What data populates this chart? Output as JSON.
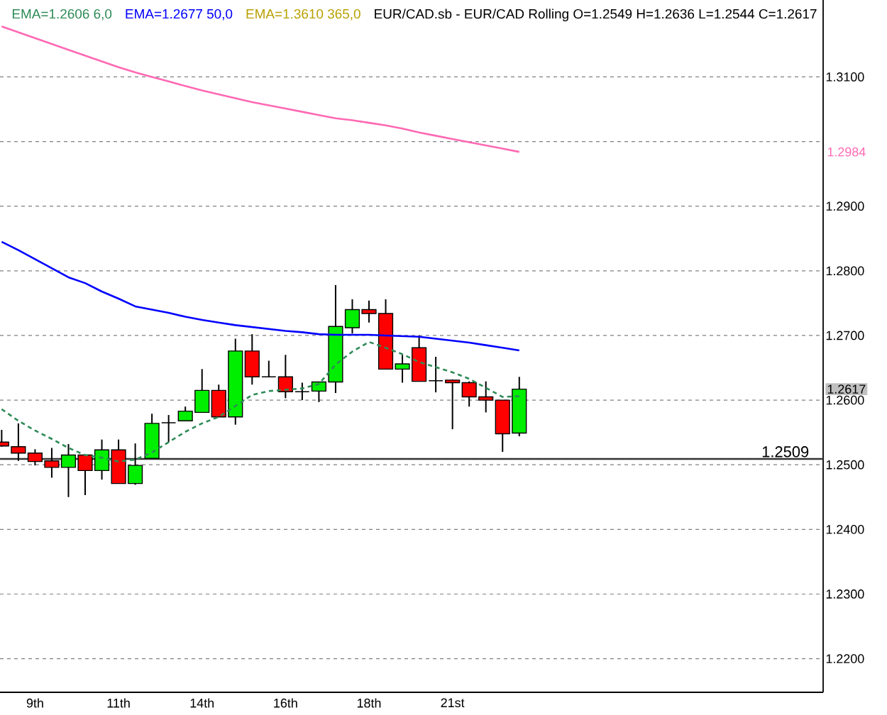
{
  "chart_data": {
    "type": "candlestick",
    "title": "EUR/CAD.sb - EUR/CAD Rolling O=1.2549 H=1.2636 L=1.2544 C=1.2617",
    "categories": [
      null,
      null,
      "9th",
      null,
      null,
      null,
      null,
      "11th",
      null,
      null,
      null,
      null,
      "14th",
      null,
      null,
      null,
      null,
      "16th",
      null,
      null,
      null,
      null,
      "18th",
      null,
      null,
      null,
      null,
      "21st",
      null,
      null,
      null,
      null
    ],
    "ohlc": [
      [
        1.2535,
        1.2554,
        1.2528,
        1.2529
      ],
      [
        1.2528,
        1.2564,
        1.2506,
        1.2518
      ],
      [
        1.2518,
        1.2524,
        1.2499,
        1.2505
      ],
      [
        1.2506,
        1.2526,
        1.248,
        1.2496
      ],
      [
        1.2496,
        1.2532,
        1.245,
        1.2515
      ],
      [
        1.2515,
        1.2515,
        1.2453,
        1.2491
      ],
      [
        1.2491,
        1.2539,
        1.2477,
        1.2523
      ],
      [
        1.2523,
        1.2539,
        1.2471,
        1.2471
      ],
      [
        1.2471,
        1.2533,
        1.2469,
        1.2499
      ],
      [
        1.251,
        1.2579,
        1.251,
        1.2564
      ],
      [
        1.2565,
        1.2577,
        1.2535,
        1.2565
      ],
      [
        1.2568,
        1.259,
        1.2568,
        1.2583
      ],
      [
        1.2581,
        1.2648,
        1.2581,
        1.2615
      ],
      [
        1.2615,
        1.2624,
        1.2574,
        1.2574
      ],
      [
        1.2574,
        1.2695,
        1.2562,
        1.2676
      ],
      [
        1.2676,
        1.2702,
        1.2624,
        1.2636
      ],
      [
        1.2636,
        1.2661,
        1.2636,
        1.2636
      ],
      [
        1.2636,
        1.267,
        1.2603,
        1.2613
      ],
      [
        1.2613,
        1.2627,
        1.26,
        1.2613
      ],
      [
        1.2614,
        1.2628,
        1.2597,
        1.2628
      ],
      [
        1.2628,
        1.2778,
        1.2611,
        1.2714
      ],
      [
        1.2712,
        1.2756,
        1.2703,
        1.274
      ],
      [
        1.274,
        1.2754,
        1.272,
        1.2734
      ],
      [
        1.2734,
        1.2756,
        1.2648,
        1.2648
      ],
      [
        1.2648,
        1.267,
        1.2627,
        1.2656
      ],
      [
        1.2681,
        1.27,
        1.2629,
        1.2629
      ],
      [
        1.263,
        1.2667,
        1.2612,
        1.263
      ],
      [
        1.2631,
        1.2632,
        1.2555,
        1.2627
      ],
      [
        1.2627,
        1.2629,
        1.259,
        1.2605
      ],
      [
        1.2605,
        1.2629,
        1.2581,
        1.26
      ],
      [
        1.26,
        1.26,
        1.252,
        1.2548
      ],
      [
        1.2549,
        1.2636,
        1.2544,
        1.2617
      ]
    ],
    "colors": [
      "#ff0000",
      "#ff0000",
      "#ff0000",
      "#ff0000",
      "#00ee00",
      "#ff0000",
      "#00ee00",
      "#ff0000",
      "#00ee00",
      "#00ee00",
      "#000000",
      "#00ee00",
      "#00ee00",
      "#ff0000",
      "#00ee00",
      "#ff0000",
      "#000000",
      "#ff0000",
      "#000000",
      "#00ee00",
      "#00ee00",
      "#00ee00",
      "#ff0000",
      "#ff0000",
      "#00ee00",
      "#ff0000",
      "#000000",
      "#ff0000",
      "#ff0000",
      "#ff0000",
      "#ff0000",
      "#00ee00"
    ],
    "value_labels": [
      null,
      null,
      null,
      null,
      null,
      null,
      null,
      null,
      null,
      null,
      null,
      null,
      null,
      null,
      null,
      null,
      null,
      null,
      null,
      null,
      null,
      null,
      null,
      null,
      null,
      null,
      null,
      null,
      null,
      null,
      null,
      "1.2617"
    ],
    "series": [
      {
        "name": "EMA=1.2606 6,0",
        "type": "line",
        "color": "#2e8b57",
        "line_style": "dashed",
        "values": [
          1.2586,
          1.2568,
          1.2553,
          1.254,
          1.2526,
          1.2515,
          1.2511,
          1.2505,
          1.2508,
          1.2519,
          1.2535,
          1.2551,
          1.2564,
          1.2574,
          1.2591,
          1.2608,
          1.2614,
          1.2616,
          1.2618,
          1.2625,
          1.2655,
          1.2675,
          1.269,
          1.2681,
          1.2671,
          1.2659,
          1.2651,
          1.2643,
          1.2633,
          1.2619,
          1.2605,
          1.2606
        ]
      },
      {
        "name": "EMA=1.2677 50,0",
        "type": "line",
        "color": "#0000ff",
        "values": [
          1.2845,
          1.2832,
          1.2818,
          1.2804,
          1.279,
          1.2781,
          1.2768,
          1.2757,
          1.2745,
          1.274,
          1.2735,
          1.2729,
          1.2724,
          1.272,
          1.2716,
          1.2713,
          1.271,
          1.2707,
          1.2705,
          1.2702,
          1.2701,
          1.2701,
          1.2701,
          1.27,
          1.2699,
          1.2698,
          1.2695,
          1.2692,
          1.2689,
          1.2685,
          1.2681,
          1.2677
        ]
      },
      {
        "name": "EMA=1.3610 365,0",
        "type": "line",
        "color": "#b8a000",
        "values": [
          null,
          null,
          null,
          null,
          null,
          null,
          null,
          null,
          null,
          null,
          null,
          null,
          null,
          null,
          null,
          null,
          null,
          null,
          null,
          null,
          null,
          null,
          null,
          null,
          null,
          null,
          null,
          null,
          null,
          null,
          null,
          null
        ]
      },
      {
        "type": "line",
        "color": "#ff69b4",
        "values": [
          1.3178,
          1.3169,
          1.316,
          1.3151,
          1.3142,
          1.3133,
          1.3124,
          1.3115,
          1.3107,
          1.31,
          1.3093,
          1.3086,
          1.3079,
          1.3073,
          1.3067,
          1.3061,
          1.3056,
          1.3051,
          1.3046,
          1.3041,
          1.3036,
          1.3033,
          1.3029,
          1.3025,
          1.302,
          1.3014,
          1.3009,
          1.3004,
          1.2999,
          1.2994,
          1.2989,
          1.2984
        ]
      }
    ],
    "ylim": [
      1.2148,
      1.3219
    ],
    "yticks": [
      {
        "value": 1.22,
        "label": "1.2200"
      },
      {
        "value": 1.23,
        "label": "1.2300"
      },
      {
        "value": 1.24,
        "label": "1.2400"
      },
      {
        "value": 1.25,
        "label": "1.2500"
      },
      {
        "value": 1.26,
        "label": "1.2600"
      },
      {
        "value": 1.27,
        "label": "1.2700"
      },
      {
        "value": 1.28,
        "label": "1.2800"
      },
      {
        "value": 1.29,
        "label": "1.2900"
      },
      {
        "value": 1.3,
        "label": null
      },
      {
        "value": 1.31,
        "label": "1.3100"
      }
    ],
    "grid": "y",
    "legend": "top",
    "ref_lines": [
      {
        "axis": "y",
        "value": 1.2509,
        "label": "1.2509",
        "color": "#333333"
      }
    ],
    "annotations": [
      "1.2984"
    ]
  }
}
